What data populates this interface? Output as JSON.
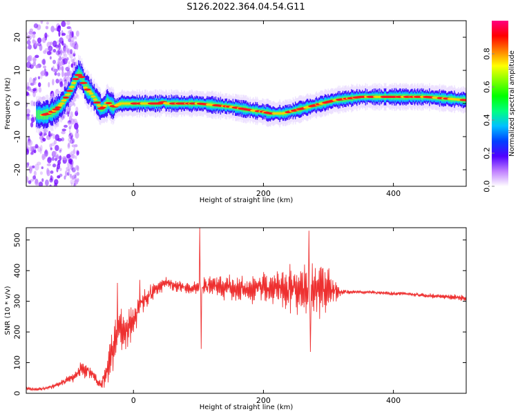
{
  "title": "S126.2022.364.04.54.G11",
  "chart_data": [
    {
      "type": "heatmap",
      "xlabel": "Height of straight line (km)",
      "ylabel": "Frequency (Hz)",
      "xlim": [
        -165,
        512
      ],
      "ylim": [
        -25,
        25
      ],
      "xticks": [
        0,
        200,
        400
      ],
      "yticks": [
        -20,
        -10,
        0,
        10,
        20
      ],
      "ridge": {
        "x": [
          -165,
          -140,
          -130,
          -120,
          -110,
          -100,
          -95,
          -90,
          -85,
          -80,
          -75,
          -70,
          -65,
          -60,
          -55,
          -50,
          -45,
          -40,
          -35,
          -30,
          -20,
          0,
          20,
          40,
          45,
          50,
          60,
          100,
          150,
          180,
          200,
          210,
          230,
          250,
          270,
          290,
          310,
          330,
          350,
          400,
          450,
          512
        ],
        "y": [
          -3,
          -3.5,
          -3,
          -2,
          0,
          3,
          5,
          7,
          9,
          8,
          5,
          4,
          3,
          1.5,
          0,
          -1.5,
          -1,
          0.5,
          -0.5,
          -1,
          0,
          0,
          0,
          0,
          0.5,
          0,
          0,
          0,
          -1,
          -2,
          -2.5,
          -3,
          -3,
          -2,
          -1,
          0,
          1,
          1.5,
          2,
          2,
          2,
          1
        ]
      },
      "colorbar": {
        "label": "Normalized spectral amplitude",
        "range": [
          0,
          1
        ],
        "ticks": [
          0.0,
          0.2,
          0.4,
          0.6,
          0.8
        ],
        "tick_labels": [
          "0.0",
          "0.2",
          "0.4",
          "0.6",
          "0.8"
        ],
        "colors": [
          "#ffffff",
          "#c080ff",
          "#5000ff",
          "#0040ff",
          "#00c0ff",
          "#00ff80",
          "#00ff00",
          "#80ff00",
          "#ffff00",
          "#ff8000",
          "#ff0000",
          "#ff0080"
        ]
      }
    },
    {
      "type": "line",
      "xlabel": "Height of straight line (km)",
      "ylabel": "SNR (10 * v/v)",
      "xlim": [
        -165,
        512
      ],
      "ylim": [
        0,
        540
      ],
      "xticks": [
        0,
        200,
        400
      ],
      "yticks": [
        0,
        100,
        200,
        300,
        400,
        500
      ],
      "series": [
        {
          "color": "#ee3030",
          "x": [
            -165,
            -150,
            -130,
            -110,
            -90,
            -80,
            -70,
            -60,
            -50,
            -40,
            -30,
            -20,
            -10,
            0,
            10,
            20,
            30,
            40,
            50,
            60,
            80,
            100,
            120,
            140,
            160,
            180,
            200,
            220,
            240,
            260,
            280,
            300,
            320,
            340,
            360,
            380,
            400,
            420,
            440,
            460,
            480,
            500,
            512
          ],
          "y": [
            15,
            12,
            18,
            35,
            55,
            80,
            75,
            55,
            25,
            80,
            170,
            220,
            200,
            240,
            290,
            310,
            330,
            345,
            360,
            355,
            345,
            345,
            350,
            345,
            340,
            340,
            345,
            340,
            340,
            340,
            335,
            345,
            330,
            330,
            330,
            328,
            325,
            325,
            320,
            318,
            315,
            312,
            310
          ],
          "spread": [
            8,
            8,
            10,
            15,
            25,
            40,
            35,
            30,
            25,
            70,
            120,
            110,
            90,
            80,
            60,
            50,
            45,
            35,
            30,
            30,
            35,
            45,
            50,
            55,
            60,
            70,
            80,
            90,
            110,
            130,
            150,
            120,
            15,
            8,
            8,
            8,
            9,
            10,
            10,
            11,
            12,
            14,
            15
          ],
          "spikes": [
            {
              "x": 102,
              "y": 540
            },
            {
              "x": 104,
              "y": 145
            },
            {
              "x": 270,
              "y": 530
            },
            {
              "x": 272,
              "y": 135
            },
            {
              "x": -25,
              "y": 360
            },
            {
              "x": 10,
              "y": 370
            }
          ]
        }
      ]
    }
  ]
}
